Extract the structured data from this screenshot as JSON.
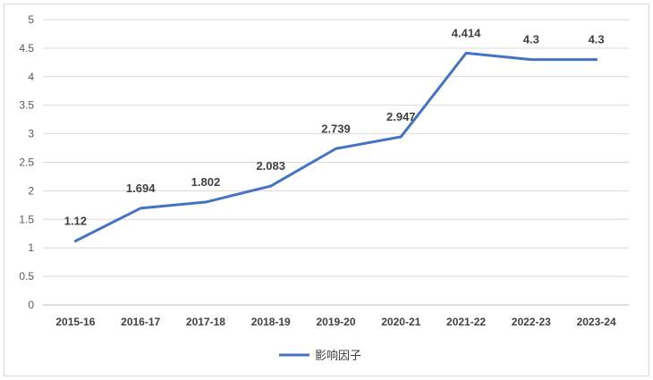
{
  "chart_data": {
    "type": "line",
    "title": "",
    "xlabel": "",
    "ylabel": "",
    "categories": [
      "2015-16",
      "2016-17",
      "2017-18",
      "2018-19",
      "2019-20",
      "2020-21",
      "2021-22",
      "2022-23",
      "2023-24"
    ],
    "series": [
      {
        "name": "影响因子",
        "values": [
          1.12,
          1.694,
          1.802,
          2.083,
          2.739,
          2.947,
          4.414,
          4.3,
          4.3
        ],
        "labels": [
          "1.12",
          "1.694",
          "1.802",
          "2.083",
          "2.739",
          "2.947",
          "4.414",
          "4.3",
          "4.3"
        ],
        "color": "#4472C4"
      }
    ],
    "ylim": [
      0,
      5
    ],
    "yticks": [
      "0",
      "0.5",
      "1",
      "1.5",
      "2",
      "2.5",
      "3",
      "3.5",
      "4",
      "4.5",
      "5"
    ],
    "ytick_values": [
      0,
      0.5,
      1,
      1.5,
      2,
      2.5,
      3,
      3.5,
      4,
      4.5,
      5
    ],
    "grid": true,
    "legend": "bottom",
    "colors": {
      "gridline": "#d9d9d9",
      "axis": "#bfbfbf"
    }
  }
}
